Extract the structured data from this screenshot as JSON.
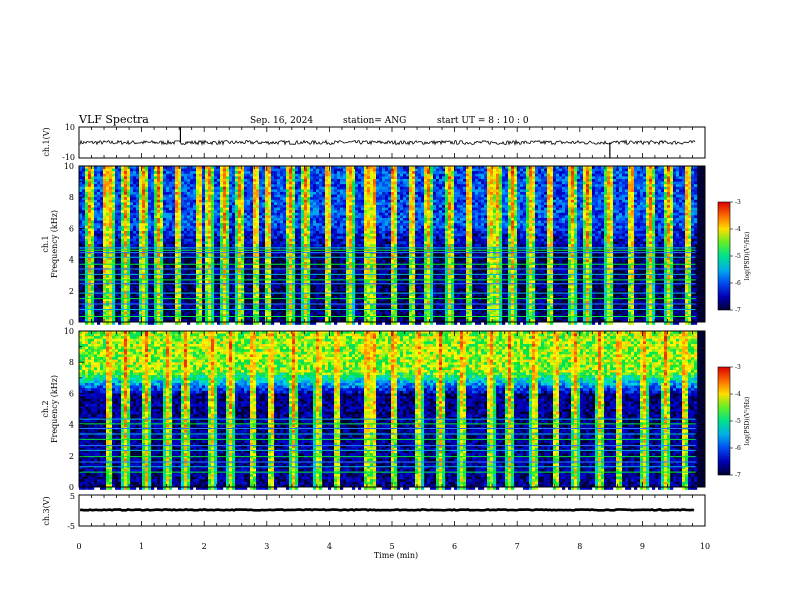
{
  "header": {
    "title": "VLF Spectra",
    "date": "Sep. 16, 2024",
    "station": "station= ANG",
    "start": "start  UT =   8  : 10 : 0"
  },
  "colors": {
    "spectrogram_ramp": [
      "#000032",
      "#0000c8",
      "#0064ff",
      "#00dcdc",
      "#00e63c",
      "#ffff00",
      "#ff7800",
      "#dc0000",
      "#ffffff"
    ],
    "trace": "#000000"
  },
  "chart_data": [
    {
      "type": "line",
      "name": "ch1-waveform",
      "ylabel": "ch.1(V)",
      "ylim": [
        -10,
        10
      ],
      "ytick_labels": [
        "10",
        "-10"
      ],
      "xlim": [
        0,
        10
      ],
      "baseline": 0,
      "noise_amplitude": 1.3,
      "spikes": [
        {
          "x": 1.62,
          "y": 10
        },
        {
          "x": 8.48,
          "y": -10
        }
      ],
      "data_end": 9.85
    },
    {
      "type": "heatmap",
      "name": "ch1-spectrogram",
      "ylabel": "ch.1\nFrequency (kHz)",
      "ylim": [
        0,
        10
      ],
      "xlim": [
        0,
        10
      ],
      "ytick_labels": [
        "0",
        "2",
        "4",
        "6",
        "8",
        "10"
      ],
      "data_end": 9.85,
      "colorbar": {
        "label": "log(PSD)(V²/Hz)",
        "range": [
          -7,
          -3
        ],
        "tick_labels": [
          "-3",
          "-4",
          "-5",
          "-6",
          "-7"
        ]
      },
      "background_level": -6.7,
      "upper_band": {
        "from_khz": 4.8,
        "to_khz": 10,
        "level": -6.0
      },
      "tones_khz": [
        0.35,
        0.8,
        1.15,
        1.5,
        1.85,
        2.45,
        2.7,
        3.05,
        3.4,
        3.7,
        4.15,
        4.45,
        4.6,
        4.75
      ],
      "bursts_min": [
        0.15,
        0.4,
        0.47,
        0.72,
        1.0,
        1.25,
        1.55,
        1.9,
        2.05,
        2.3,
        2.55,
        2.8,
        3.0,
        3.35,
        3.6,
        3.95,
        4.3,
        4.58,
        4.68,
        5.0,
        5.3,
        5.55,
        5.9,
        6.2,
        6.55,
        6.65,
        6.9,
        7.2,
        7.5,
        7.85,
        8.1,
        8.45,
        8.8,
        9.1,
        9.4,
        9.7
      ]
    },
    {
      "type": "heatmap",
      "name": "ch2-spectrogram",
      "ylabel": "ch.2\nFrequency (kHz)",
      "ylim": [
        0,
        10
      ],
      "xlim": [
        0,
        10
      ],
      "ytick_labels": [
        "0",
        "2",
        "4",
        "6",
        "8",
        "10"
      ],
      "data_end": 9.85,
      "colorbar": {
        "label": "log(PSD)(V²/Hz)",
        "range": [
          -7,
          -3
        ],
        "tick_labels": [
          "-3",
          "-4",
          "-5",
          "-6",
          "-7"
        ]
      },
      "background_level": -6.6,
      "upper_band": {
        "from_khz": 6.0,
        "to_khz": 10,
        "level": -4.4
      },
      "tones_khz": [
        0.95,
        1.3,
        1.6,
        1.95,
        2.35,
        2.65,
        3.05,
        3.4,
        3.75,
        4.05,
        4.35
      ],
      "bursts_min": [
        0.45,
        0.72,
        1.05,
        1.4,
        1.68,
        2.1,
        2.4,
        2.75,
        3.05,
        3.4,
        3.8,
        4.1,
        4.58,
        4.68,
        5.0,
        5.4,
        5.75,
        6.1,
        6.55,
        6.85,
        7.25,
        7.6,
        7.9,
        8.3,
        8.6,
        9.0,
        9.35,
        9.65
      ]
    },
    {
      "type": "line",
      "name": "ch3-waveform",
      "ylabel": "ch.3(V)",
      "ylim": [
        -5,
        5
      ],
      "ytick_labels": [
        "5",
        "-5"
      ],
      "xlim": [
        0,
        10
      ],
      "baseline": 0.2,
      "noise_amplitude": 0.15,
      "data_end": 9.85
    }
  ],
  "xaxis": {
    "label": "Time (min)",
    "tick_labels": [
      "0",
      "1",
      "2",
      "3",
      "4",
      "5",
      "6",
      "7",
      "8",
      "9",
      "10"
    ]
  }
}
